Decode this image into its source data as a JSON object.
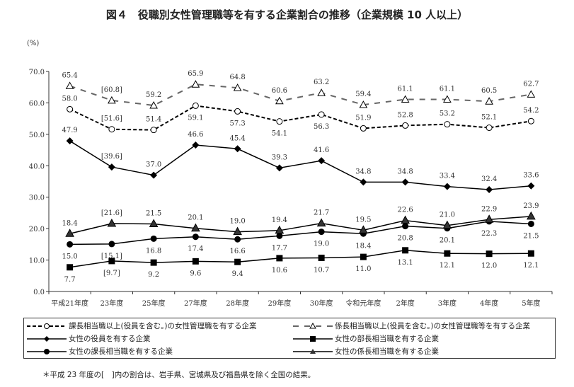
{
  "title": "図４　役職別女性管理職等を有する企業割合の推移（企業規模 10 人以上）",
  "note": "＊平成 23 年度の[　]内の割合は、岩手県、宮城県及び福島県を除く全国の結果。",
  "chart_data": {
    "type": "line",
    "title": "図４　役職別女性管理職等を有する企業割合の推移（企業規模 10 人以上）",
    "ylabel": "(%)",
    "ylim": [
      0,
      70
    ],
    "yticks": [
      "0.0",
      "10.0",
      "20.0",
      "30.0",
      "40.0",
      "50.0",
      "60.0",
      "70.0"
    ],
    "grid": false,
    "legend": "bottom",
    "categories": [
      "平成21年度",
      "23年度",
      "25年度",
      "27年度",
      "28年度",
      "29年度",
      "30年度",
      "令和元年度",
      "2年度",
      "3年度",
      "4年度",
      "5年度"
    ],
    "bracketed_category": "23年度",
    "series": [
      {
        "name": "課長相当職以上(役員を含む。)の女性管理職を有する企業",
        "style": "dashed",
        "marker": "open-circle",
        "values": [
          58.0,
          51.6,
          51.4,
          59.1,
          57.3,
          54.1,
          56.3,
          51.9,
          52.8,
          53.2,
          52.1,
          54.2
        ],
        "labels": [
          "58.0",
          "[51.6]",
          "51.4",
          "59.1",
          "57.3",
          "54.1",
          "56.3",
          "51.9",
          "52.8",
          "53.2",
          "52.1",
          "54.2"
        ]
      },
      {
        "name": "係長相当職以上(役員を含む。)の女性管理職等を有する企業",
        "style": "dashed-gray",
        "marker": "open-triangle",
        "values": [
          65.4,
          60.8,
          59.2,
          65.9,
          64.8,
          60.6,
          63.2,
          59.4,
          61.1,
          61.1,
          60.5,
          62.7
        ],
        "labels": [
          "65.4",
          "[60.8]",
          "59.2",
          "65.9",
          "64.8",
          "60.6",
          "63.2",
          "59.4",
          "61.1",
          "61.1",
          "60.5",
          "62.7"
        ]
      },
      {
        "name": "女性の役員を有する企業",
        "style": "solid",
        "marker": "diamond",
        "values": [
          47.9,
          39.6,
          37.0,
          46.6,
          45.4,
          39.3,
          41.6,
          34.8,
          34.8,
          33.4,
          32.4,
          33.6
        ],
        "labels": [
          "47.9",
          "[39.6]",
          "37.0",
          "46.6",
          "45.4",
          "39.3",
          "41.6",
          "34.8",
          "34.8",
          "33.4",
          "32.4",
          "33.6"
        ]
      },
      {
        "name": "女性の部長相当職を有する企業",
        "style": "solid",
        "marker": "square",
        "values": [
          7.7,
          9.7,
          9.2,
          9.6,
          9.4,
          10.6,
          10.7,
          11.0,
          13.1,
          12.1,
          12.0,
          12.1
        ],
        "labels": [
          "7.7",
          "[9.7]",
          "9.2",
          "9.6",
          "9.4",
          "10.6",
          "10.7",
          "11.0",
          "13.1",
          "12.1",
          "12.0",
          "12.1"
        ]
      },
      {
        "name": "女性の課長相当職を有する企業",
        "style": "solid",
        "marker": "circle",
        "values": [
          15.0,
          15.1,
          16.8,
          17.4,
          16.6,
          17.7,
          19.0,
          18.4,
          20.8,
          20.1,
          22.3,
          21.5
        ],
        "labels": [
          "15.0",
          "[15.1]",
          "16.8",
          "17.4",
          "16.6",
          "17.7",
          "19.0",
          "18.4",
          "20.8",
          "20.1",
          "22.3",
          "21.5"
        ]
      },
      {
        "name": "女性の係長相当職を有する企業",
        "style": "solid",
        "marker": "triangle",
        "values": [
          18.4,
          21.6,
          21.5,
          20.1,
          19.0,
          19.4,
          21.7,
          19.5,
          22.6,
          21.0,
          22.9,
          23.9
        ],
        "labels": [
          "18.4",
          "[21.6]",
          "21.5",
          "20.1",
          "19.0",
          "19.4",
          "21.7",
          "19.5",
          "22.6",
          "21.0",
          "22.9",
          "23.9"
        ]
      }
    ]
  }
}
